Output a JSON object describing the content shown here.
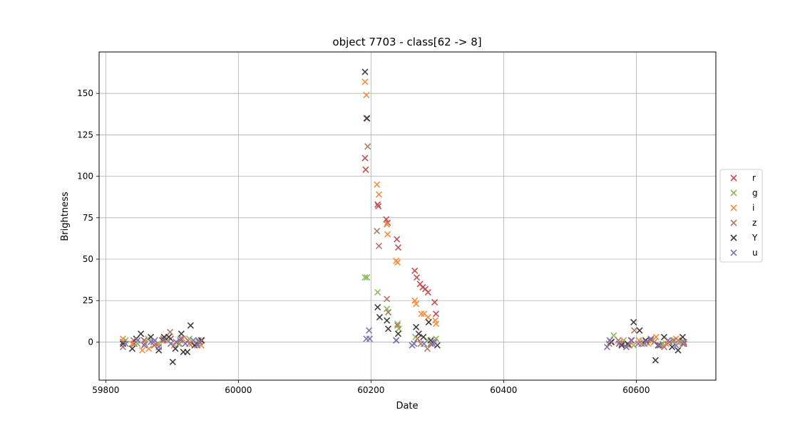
{
  "chart_data": {
    "type": "scatter",
    "title": "object 7703 - class[62 -> 8]",
    "xlabel": "Date",
    "ylabel": "Brightness",
    "xlim": [
      59790,
      60720
    ],
    "ylim": [
      -23,
      175
    ],
    "xticks": [
      59800,
      60000,
      60200,
      60400,
      60600
    ],
    "yticks": [
      0,
      25,
      50,
      75,
      100,
      125,
      150
    ],
    "grid": true,
    "legend_position": "center-right",
    "marker": "x",
    "series": [
      {
        "name": "r",
        "color": "#c44e52",
        "points": [
          [
            59826,
            0
          ],
          [
            59843,
            -1
          ],
          [
            59858,
            1
          ],
          [
            59873,
            -2
          ],
          [
            59885,
            1
          ],
          [
            59898,
            2
          ],
          [
            59911,
            -1
          ],
          [
            59924,
            1
          ],
          [
            59938,
            -1
          ],
          [
            60191,
            111
          ],
          [
            60192,
            104
          ],
          [
            60210,
            83
          ],
          [
            60211,
            82
          ],
          [
            60223,
            74
          ],
          [
            60225,
            72
          ],
          [
            60239,
            62
          ],
          [
            60241,
            57
          ],
          [
            60266,
            43
          ],
          [
            60269,
            39
          ],
          [
            60274,
            35
          ],
          [
            60278,
            33
          ],
          [
            60282,
            32
          ],
          [
            60286,
            30
          ],
          [
            60296,
            24
          ],
          [
            60298,
            17
          ],
          [
            59945,
            1
          ],
          [
            60270,
            2
          ],
          [
            60290,
            -1
          ],
          [
            60563,
            0
          ],
          [
            60578,
            -1
          ],
          [
            60593,
            1
          ],
          [
            60608,
            -1
          ],
          [
            60622,
            1
          ],
          [
            60636,
            -2
          ],
          [
            60650,
            0
          ],
          [
            60663,
            1
          ],
          [
            60672,
            -1
          ]
        ]
      },
      {
        "name": "g",
        "color": "#8bba5c",
        "points": [
          [
            59830,
            1
          ],
          [
            59848,
            -1
          ],
          [
            59864,
            2
          ],
          [
            59880,
            -1
          ],
          [
            59894,
            1
          ],
          [
            59910,
            -1
          ],
          [
            59926,
            2
          ],
          [
            59940,
            0
          ],
          [
            60191,
            39
          ],
          [
            60194,
            39
          ],
          [
            60210,
            30
          ],
          [
            60224,
            20
          ],
          [
            60226,
            18
          ],
          [
            60240,
            11
          ],
          [
            60242,
            8
          ],
          [
            60267,
            3
          ],
          [
            60285,
            1
          ],
          [
            60298,
            2
          ],
          [
            60566,
            4
          ],
          [
            60581,
            1
          ],
          [
            60596,
            -2
          ],
          [
            60611,
            0
          ],
          [
            60625,
            1
          ],
          [
            60640,
            -1
          ],
          [
            60655,
            1
          ],
          [
            60668,
            0
          ]
        ]
      },
      {
        "name": "i",
        "color": "#f28e3e",
        "points": [
          [
            59826,
            2
          ],
          [
            59840,
            -1
          ],
          [
            59855,
            -5
          ],
          [
            59865,
            -4
          ],
          [
            59878,
            -1
          ],
          [
            59890,
            1
          ],
          [
            59903,
            -2
          ],
          [
            59916,
            2
          ],
          [
            59930,
            -1
          ],
          [
            59944,
            -2
          ],
          [
            60191,
            157
          ],
          [
            60193,
            149
          ],
          [
            60209,
            95
          ],
          [
            60212,
            89
          ],
          [
            60224,
            71
          ],
          [
            60225,
            65
          ],
          [
            60238,
            49
          ],
          [
            60240,
            48
          ],
          [
            60266,
            25
          ],
          [
            60268,
            23
          ],
          [
            60276,
            17
          ],
          [
            60280,
            17
          ],
          [
            60286,
            15
          ],
          [
            60297,
            13
          ],
          [
            60298,
            11
          ],
          [
            60560,
            1
          ],
          [
            60575,
            0
          ],
          [
            60590,
            -2
          ],
          [
            60604,
            1
          ],
          [
            60618,
            -1
          ],
          [
            60630,
            3
          ],
          [
            60645,
            -1
          ],
          [
            60660,
            2
          ],
          [
            60671,
            0
          ]
        ]
      },
      {
        "name": "z",
        "color": "#b07a66",
        "points": [
          [
            59826,
            -3
          ],
          [
            59842,
            1
          ],
          [
            59859,
            -1
          ],
          [
            59872,
            0
          ],
          [
            59887,
            2
          ],
          [
            59897,
            6
          ],
          [
            59912,
            1
          ],
          [
            59926,
            -1
          ],
          [
            59940,
            1
          ],
          [
            60193,
            135
          ],
          [
            60195,
            118
          ],
          [
            60209,
            67
          ],
          [
            60212,
            58
          ],
          [
            60224,
            26
          ],
          [
            60226,
            18
          ],
          [
            60240,
            10
          ],
          [
            60275,
            -1
          ],
          [
            60285,
            -4
          ],
          [
            60292,
            0
          ],
          [
            60559,
            -1
          ],
          [
            60573,
            1
          ],
          [
            60588,
            -2
          ],
          [
            60597,
            7
          ],
          [
            60612,
            -1
          ],
          [
            60627,
            0
          ],
          [
            60642,
            -3
          ],
          [
            60657,
            1
          ],
          [
            60670,
            -1
          ]
        ]
      },
      {
        "name": "Y",
        "color": "#3d3d3d",
        "points": [
          [
            59826,
            -1
          ],
          [
            59840,
            -4
          ],
          [
            59846,
            2
          ],
          [
            59853,
            5
          ],
          [
            59868,
            3
          ],
          [
            59880,
            -5
          ],
          [
            59888,
            3
          ],
          [
            59895,
            3
          ],
          [
            59901,
            -12
          ],
          [
            59905,
            -4
          ],
          [
            59914,
            5
          ],
          [
            59917,
            -6
          ],
          [
            59923,
            -6
          ],
          [
            59928,
            10
          ],
          [
            59934,
            -2
          ],
          [
            59944,
            1
          ],
          [
            60191,
            163
          ],
          [
            60194,
            135
          ],
          [
            60210,
            21
          ],
          [
            60213,
            15
          ],
          [
            60224,
            13
          ],
          [
            60226,
            8
          ],
          [
            60238,
            1
          ],
          [
            60241,
            5
          ],
          [
            60268,
            9
          ],
          [
            60272,
            5
          ],
          [
            60279,
            3
          ],
          [
            60287,
            12
          ],
          [
            60290,
            1
          ],
          [
            60300,
            -2
          ],
          [
            60562,
            0
          ],
          [
            60578,
            -2
          ],
          [
            60587,
            -1
          ],
          [
            60596,
            12
          ],
          [
            60605,
            7
          ],
          [
            60614,
            1
          ],
          [
            60629,
            -11
          ],
          [
            60633,
            -2
          ],
          [
            60642,
            3
          ],
          [
            60654,
            -3
          ],
          [
            60663,
            -5
          ],
          [
            60670,
            3
          ]
        ]
      },
      {
        "name": "u",
        "color": "#8172b2",
        "points": [
          [
            59830,
            -1
          ],
          [
            59848,
            1
          ],
          [
            59858,
            -2
          ],
          [
            59868,
            0
          ],
          [
            59874,
            1
          ],
          [
            59880,
            -3
          ],
          [
            59887,
            1
          ],
          [
            59898,
            -1
          ],
          [
            59906,
            0
          ],
          [
            59913,
            2
          ],
          [
            59920,
            -1
          ],
          [
            59932,
            1
          ],
          [
            59938,
            -2
          ],
          [
            59942,
            0
          ],
          [
            60193,
            2
          ],
          [
            60197,
            7
          ],
          [
            60198,
            2
          ],
          [
            60238,
            1
          ],
          [
            60262,
            -2
          ],
          [
            60265,
            -1
          ],
          [
            60280,
            -1
          ],
          [
            60293,
            -1
          ],
          [
            60296,
            0
          ],
          [
            60556,
            -3
          ],
          [
            60560,
            1
          ],
          [
            60574,
            -1
          ],
          [
            60585,
            -3
          ],
          [
            60592,
            1
          ],
          [
            60603,
            -1
          ],
          [
            60615,
            0
          ],
          [
            60622,
            2
          ],
          [
            60634,
            -2
          ],
          [
            60648,
            1
          ],
          [
            60660,
            -2
          ],
          [
            60672,
            0
          ]
        ]
      }
    ]
  }
}
